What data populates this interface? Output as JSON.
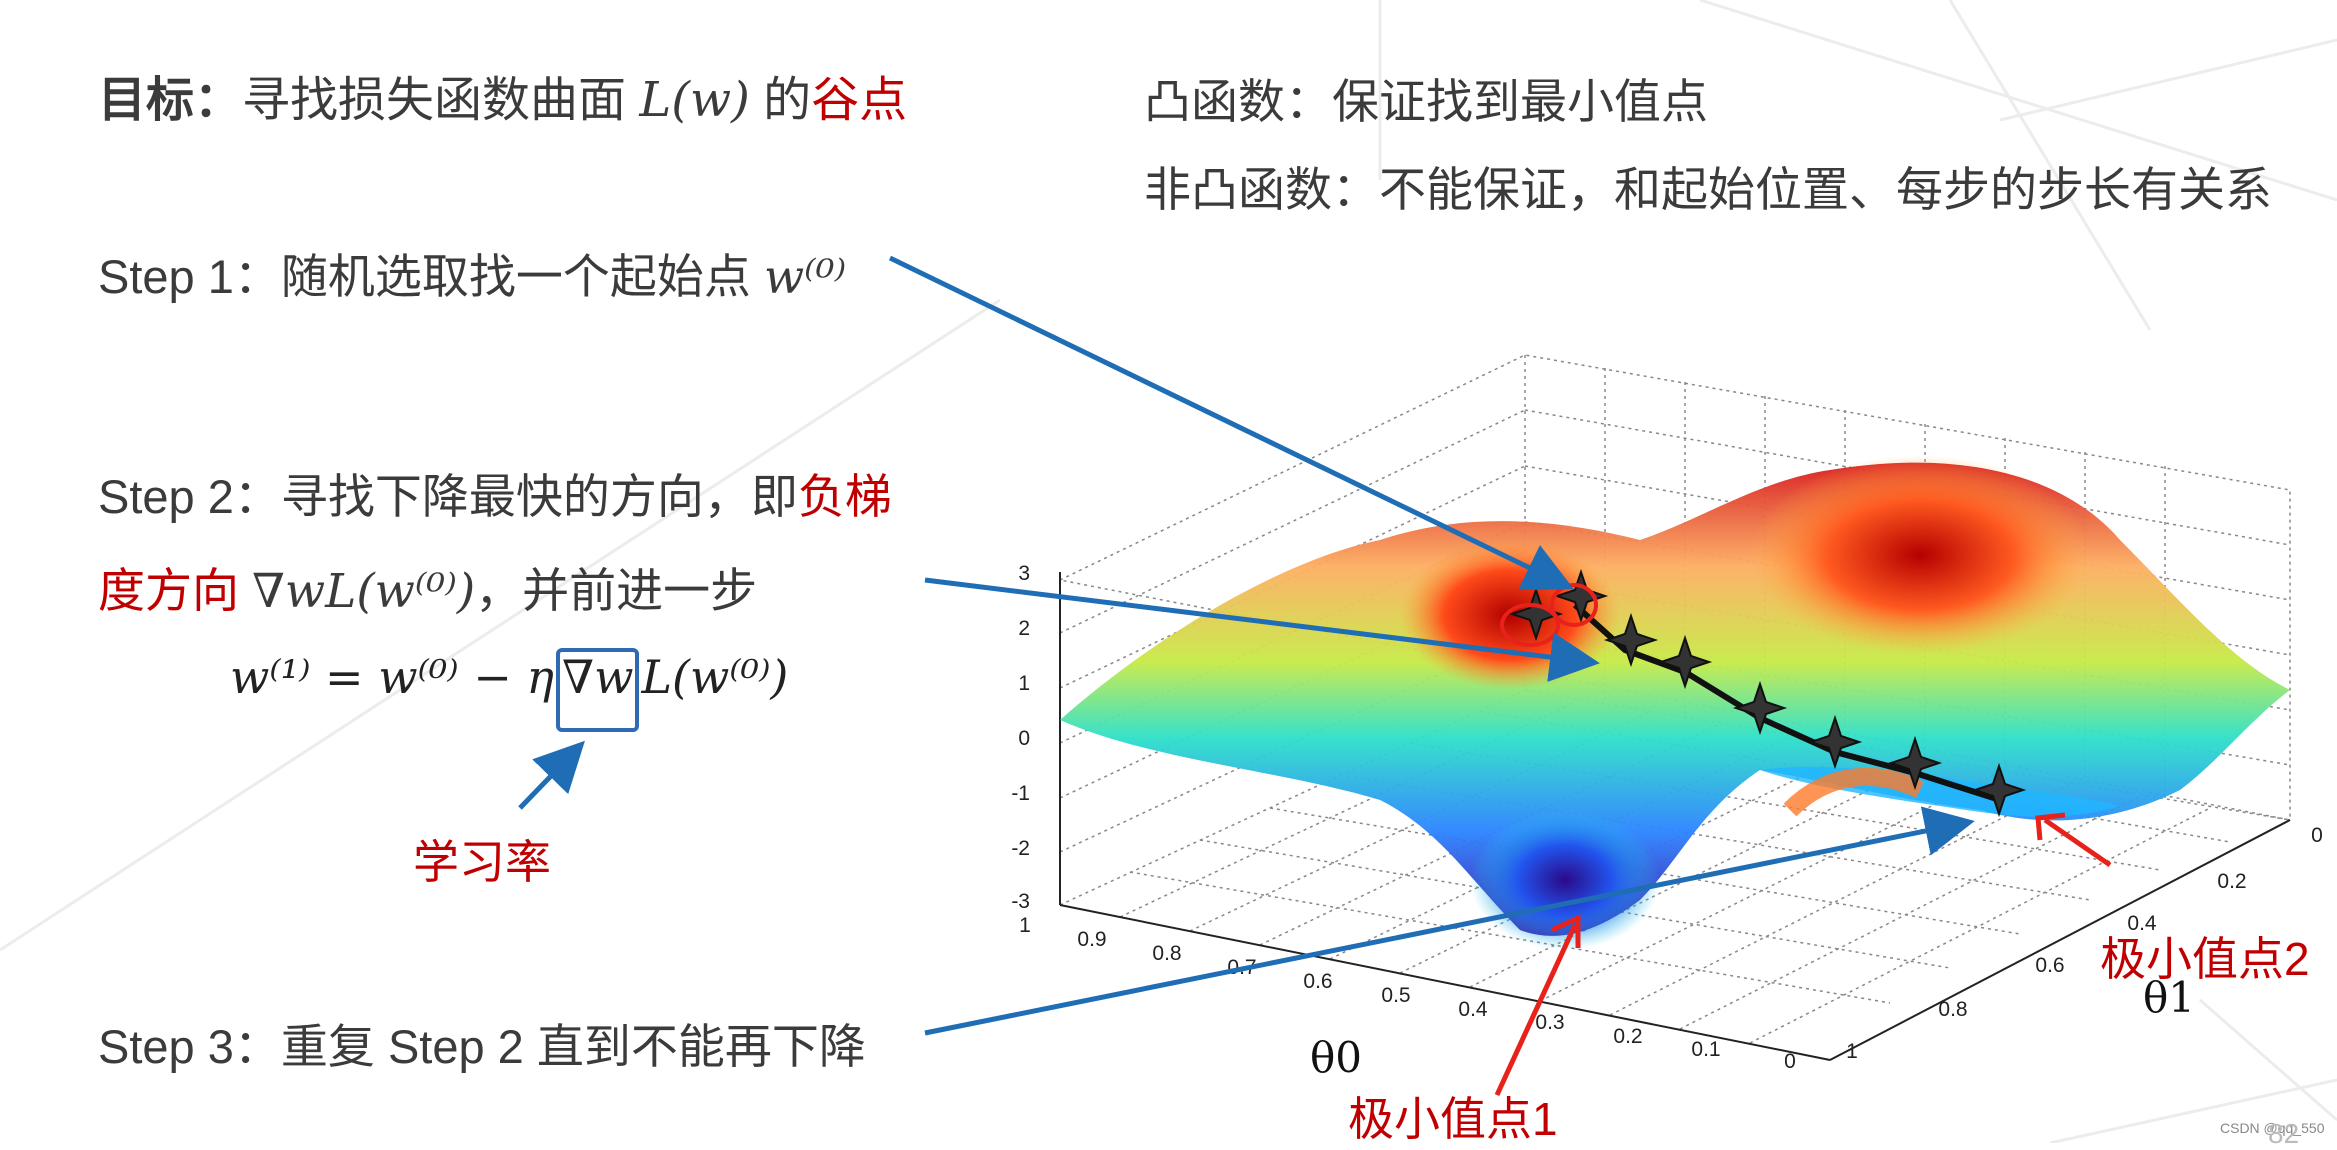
{
  "goal": {
    "prefix": "目标：",
    "text": "寻找损失函数曲面",
    "formula": "L(w)",
    "de": "的",
    "highlight": "谷点"
  },
  "convex_note": "凸函数：保证找到最小值点",
  "nonconvex_note": "非凸函数：不能保证，和起始位置、每步的步长有关系",
  "step1": {
    "text": "Step 1：随机选取找一个起始点",
    "formula": "w⁽⁰⁾"
  },
  "step2": {
    "line1_text": "Step 2：寻找下降最快的方向，即",
    "line1_highlight": "负梯",
    "line2_highlight": "度方向",
    "line2_formula": "∇wL(w⁽⁰⁾)",
    "line2_text": "，并前进一步",
    "update_formula_left": "w⁽¹⁾ = w⁽⁰⁾ − η",
    "update_formula_boxed": "∇w",
    "update_formula_right": "L(w⁽⁰⁾)",
    "learning_rate_label": "学习率"
  },
  "step3": {
    "text": "Step 3：重复 Step 2 直到不能再下降"
  },
  "plot": {
    "z_ticks": [
      "3",
      "2",
      "1",
      "0",
      "-1",
      "-2",
      "-3"
    ],
    "theta0_ticks": [
      "1",
      "0.9",
      "0.8",
      "0.7",
      "0.6",
      "0.5",
      "0.4",
      "0.3",
      "0.2",
      "0.1",
      "0"
    ],
    "theta1_ticks": [
      "0",
      "0.2",
      "0.4",
      "0.6",
      "0.8",
      "1"
    ],
    "theta0_label": "θ0",
    "theta1_label": "θ1",
    "minimum1_label": "极小值点1",
    "minimum2_label": "极小值点2"
  },
  "watermark": "CSDN @qq_550",
  "page_number": "82",
  "colors": {
    "text": "#3b3b3b",
    "highlight": "#c00000",
    "arrow": "#1f6db5",
    "box": "#2f6bb5"
  }
}
